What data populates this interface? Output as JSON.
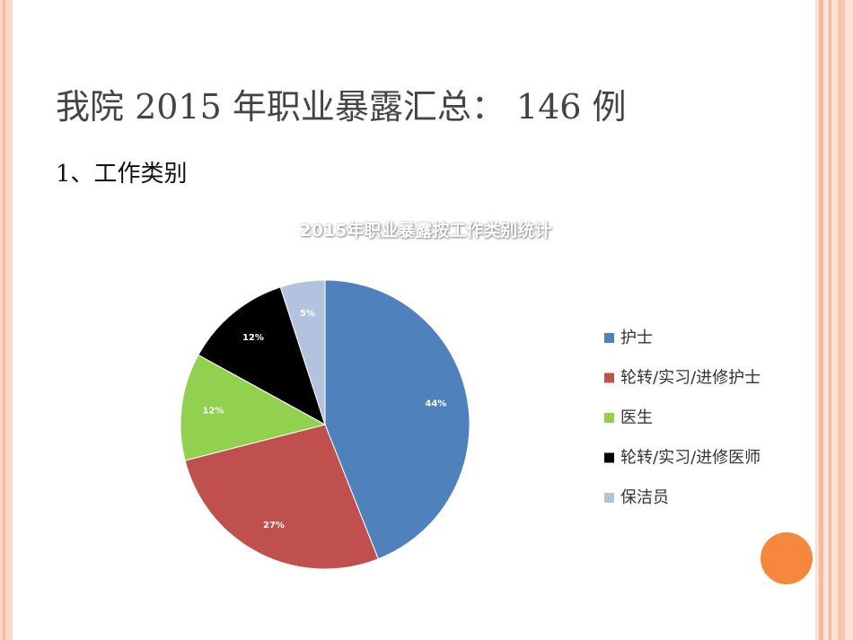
{
  "slide": {
    "title": "我院 2015 年职业暴露汇总： 146 例",
    "subtitle": "1、工作类别"
  },
  "chart_data": {
    "type": "pie",
    "title": "2015年职业暴露按工作类别统计",
    "categories": [
      "护士",
      "轮转/实习/进修护士",
      "医生",
      "轮转/实习/进修医师",
      "保洁员"
    ],
    "values": [
      44,
      27,
      12,
      12,
      5
    ],
    "value_labels": [
      "44%",
      "27%",
      "12%",
      "12%",
      "5%"
    ],
    "colors": [
      "#4f81bd",
      "#c0504d",
      "#92d050",
      "#000000",
      "#b3c3dd"
    ],
    "legend": "right"
  }
}
